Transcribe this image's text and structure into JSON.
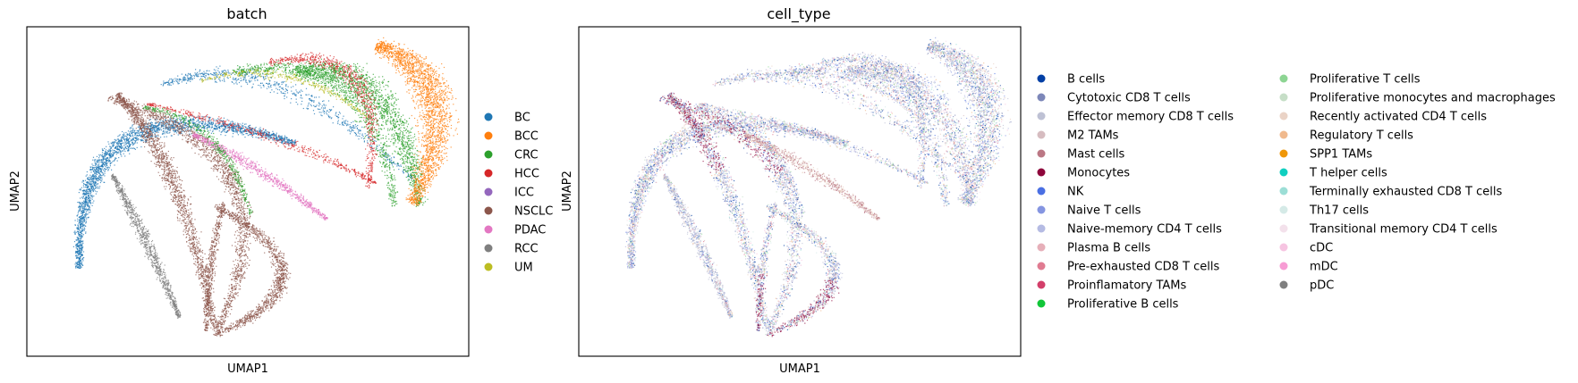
{
  "chart_data": [
    {
      "type": "scatter",
      "title": "batch",
      "xlabel": "UMAP1",
      "ylabel": "UMAP2",
      "grid": false,
      "legend": "right-outside",
      "categories": [
        {
          "label": "BC",
          "color": "#1f77b4"
        },
        {
          "label": "BCC",
          "color": "#ff7f0e"
        },
        {
          "label": "CRC",
          "color": "#2ca02c"
        },
        {
          "label": "HCC",
          "color": "#d62728"
        },
        {
          "label": "ICC",
          "color": "#9467bd"
        },
        {
          "label": "NSCLC",
          "color": "#8c564b"
        },
        {
          "label": "PDAC",
          "color": "#e377c2"
        },
        {
          "label": "RCC",
          "color": "#7f7f7f"
        },
        {
          "label": "UM",
          "color": "#bcbd22"
        }
      ]
    },
    {
      "type": "scatter",
      "title": "cell_type",
      "xlabel": "UMAP1",
      "ylabel": "UMAP2",
      "grid": false,
      "legend": "right-outside",
      "categories": [
        {
          "label": "B cells",
          "color": "#023fa5"
        },
        {
          "label": "Cytotoxic CD8 T cells",
          "color": "#7d87b9"
        },
        {
          "label": "Effector memory CD8 T cells",
          "color": "#bec1d4"
        },
        {
          "label": "M2 TAMs",
          "color": "#d6bcc0"
        },
        {
          "label": "Mast cells",
          "color": "#bb7784"
        },
        {
          "label": "Monocytes",
          "color": "#8e063b"
        },
        {
          "label": "NK",
          "color": "#4a6fe3"
        },
        {
          "label": "Naive T cells",
          "color": "#8595e1"
        },
        {
          "label": "Naive-memory CD4 T cells",
          "color": "#b5bbe3"
        },
        {
          "label": "Plasma B cells",
          "color": "#e6afb9"
        },
        {
          "label": "Pre-exhausted CD8 T cells",
          "color": "#e07b91"
        },
        {
          "label": "Proinflamatory TAMs",
          "color": "#d33f6a"
        },
        {
          "label": "Proliferative B cells",
          "color": "#11c638"
        },
        {
          "label": "Proliferative T cells",
          "color": "#8dd593"
        },
        {
          "label": "Proliferative monocytes and macrophages",
          "color": "#c6dec7"
        },
        {
          "label": "Recently activated CD4 T cells",
          "color": "#ead3c6"
        },
        {
          "label": "Regulatory T cells",
          "color": "#f0b98d"
        },
        {
          "label": "SPP1 TAMs",
          "color": "#ef9708"
        },
        {
          "label": "T helper cells",
          "color": "#0fcfc0"
        },
        {
          "label": "Terminally exhausted CD8 T cells",
          "color": "#9cded6"
        },
        {
          "label": "Th17 cells",
          "color": "#d5eae7"
        },
        {
          "label": "Transitional memory CD4 T cells",
          "color": "#f3e1eb"
        },
        {
          "label": "cDC",
          "color": "#f6c4e1"
        },
        {
          "label": "mDC",
          "color": "#f79cd4"
        },
        {
          "label": "pDC",
          "color": "#7f7f7f"
        }
      ]
    }
  ]
}
